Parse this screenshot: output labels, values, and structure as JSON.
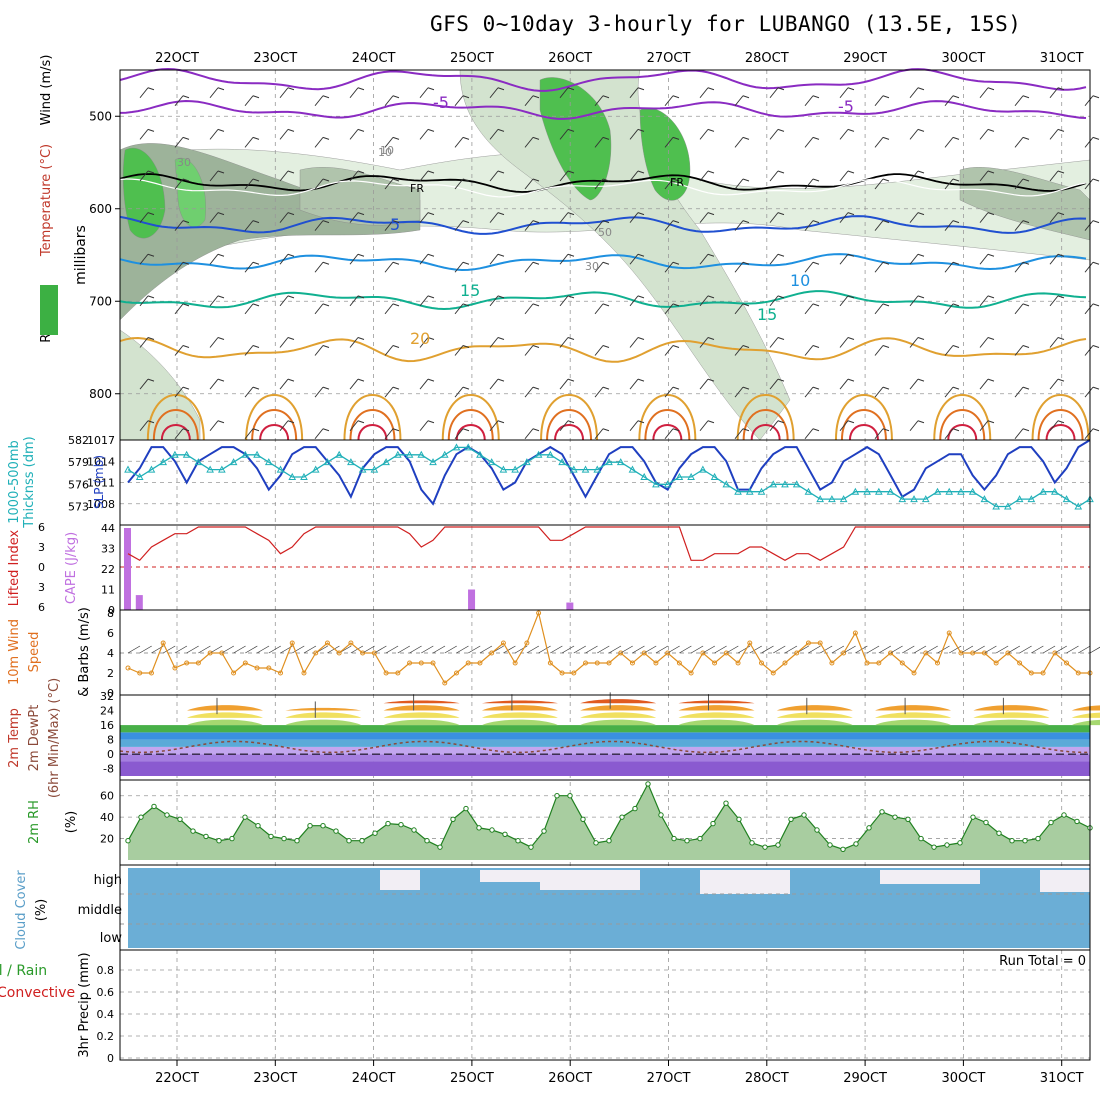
{
  "title": "GFS 0~10day 3-hourly for LUBANGO (13.5E, 15S)",
  "dates": [
    "22OCT",
    "23OCT",
    "24OCT",
    "25OCT",
    "26OCT",
    "27OCT",
    "28OCT",
    "29OCT",
    "30OCT",
    "31OCT"
  ],
  "chart_data": [
    {
      "type": "contour",
      "name": "upper-air",
      "ylabel": "millibars",
      "left_labels": [
        "RH (%)",
        "Temperature (°C)",
        "Wind (m/s)"
      ],
      "pressure_ticks": [
        500,
        600,
        700,
        800
      ],
      "ylim": [
        450,
        850
      ],
      "temp_contour_labels": [
        "-5",
        "-5",
        "10",
        "FR",
        "FR",
        "5",
        "10",
        "15",
        "15",
        "20"
      ],
      "rh_contour_labels": [
        "30",
        "10",
        "50",
        "30"
      ]
    },
    {
      "type": "line",
      "name": "thickness-slp",
      "left_labels": [
        "1000-500mb",
        "Thicknss (dm)",
        "SLP (mb)"
      ],
      "thickness_ticks": [
        573,
        576,
        579,
        582
      ],
      "slp_ticks": [
        1008,
        1011,
        1014,
        1017
      ],
      "series": [
        {
          "name": "SLP",
          "values": [
            1011,
            1013,
            1016,
            1016,
            1014,
            1011,
            1014,
            1015,
            1016,
            1016,
            1015,
            1013,
            1010,
            1012,
            1015,
            1016,
            1016,
            1014,
            1012,
            1009,
            1013,
            1015,
            1016,
            1016,
            1014,
            1010,
            1008,
            1012,
            1015,
            1016,
            1015,
            1013,
            1010,
            1011,
            1014,
            1015,
            1016,
            1015,
            1012,
            1009,
            1012,
            1015,
            1016,
            1016,
            1014,
            1011,
            1010,
            1013,
            1015,
            1016,
            1016,
            1014,
            1010,
            1010,
            1013,
            1015,
            1016,
            1016,
            1013,
            1010,
            1011,
            1014,
            1015,
            1016,
            1015,
            1012,
            1009,
            1010,
            1013,
            1014,
            1015,
            1015,
            1012,
            1010,
            1012,
            1015,
            1016,
            1016,
            1014,
            1011,
            1013,
            1016,
            1017
          ]
        },
        {
          "name": "Thickness",
          "values": [
            578,
            577,
            578,
            579,
            580,
            580,
            579,
            578,
            578,
            579,
            580,
            580,
            579,
            578,
            577,
            577,
            578,
            579,
            580,
            579,
            578,
            578,
            579,
            580,
            580,
            580,
            579,
            580,
            581,
            581,
            580,
            579,
            578,
            578,
            579,
            580,
            580,
            579,
            578,
            578,
            578,
            579,
            579,
            578,
            577,
            576,
            576,
            577,
            577,
            578,
            577,
            576,
            575,
            575,
            575,
            576,
            576,
            576,
            575,
            574,
            574,
            574,
            575,
            575,
            575,
            575,
            574,
            574,
            574,
            575,
            575,
            575,
            575,
            574,
            573,
            573,
            574,
            574,
            575,
            575,
            574,
            573,
            574
          ]
        }
      ]
    },
    {
      "type": "bar+line",
      "name": "cape-li",
      "left_labels": [
        "Lifted Index",
        "CAPE (J/kg)"
      ],
      "li_ticks": [
        -6,
        -3,
        0,
        3,
        6
      ],
      "cape_ticks": [
        0,
        11,
        22,
        33,
        44
      ],
      "cape_bars": [
        {
          "day": 0.0,
          "value": 44
        },
        {
          "day": 0.12,
          "value": 8
        },
        {
          "day": 3.5,
          "value": 11
        },
        {
          "day": 4.5,
          "value": 4
        }
      ],
      "lifted_index": [
        2,
        1,
        3,
        4,
        5,
        5,
        6,
        6,
        6,
        6,
        6,
        5,
        4,
        2,
        3,
        5,
        6,
        6,
        6,
        6,
        6,
        6,
        6,
        6,
        5,
        3,
        4,
        6,
        6,
        6,
        6,
        6,
        6,
        6,
        6,
        6,
        4,
        4,
        5,
        6,
        6,
        6,
        6,
        6,
        6,
        6,
        6,
        6,
        1,
        1,
        2,
        2,
        2,
        3,
        3,
        2,
        1,
        2,
        2,
        1,
        2,
        3,
        6,
        6,
        6,
        6,
        6,
        6,
        6,
        6,
        6,
        6,
        6,
        6,
        6,
        6,
        6,
        6,
        6,
        6,
        6,
        6,
        6
      ]
    },
    {
      "type": "line",
      "name": "wind10m",
      "left_labels": [
        "10m Wind",
        "Speed",
        "& Barbs (m/s)"
      ],
      "yticks": [
        0,
        2,
        4,
        6,
        8
      ],
      "values": [
        2.5,
        2,
        2,
        5,
        2.5,
        3,
        3,
        4,
        4,
        2,
        3,
        2.5,
        2.5,
        2,
        5,
        2,
        4,
        5,
        4,
        5,
        4,
        4,
        2,
        2,
        3,
        3,
        3,
        1,
        2,
        3,
        3,
        4,
        5,
        3,
        5,
        8,
        3,
        2,
        2,
        3,
        3,
        3,
        4,
        3,
        4,
        3,
        4,
        3,
        2,
        4,
        3,
        4,
        3,
        5,
        3,
        2,
        3,
        4,
        5,
        5,
        3,
        4,
        6,
        3,
        3,
        4,
        3,
        2,
        4,
        3,
        6,
        4,
        4,
        4,
        3,
        4,
        3,
        2,
        2,
        4,
        3,
        2,
        2
      ]
    },
    {
      "type": "area",
      "name": "temp-dewpoint",
      "left_labels": [
        "2m Temp",
        "2m DewPt",
        "(6hr Min/Max) (°C)"
      ],
      "yticks": [
        -8,
        0,
        8,
        16,
        24,
        32
      ],
      "temp_max_daily": [
        28,
        26,
        30,
        30,
        31,
        30,
        28,
        28,
        28,
        28
      ],
      "temp_min_daily": [
        17,
        16,
        16,
        16,
        16,
        16,
        16,
        15,
        15,
        15
      ],
      "dewpoint_range": [
        -6,
        10
      ]
    },
    {
      "type": "area",
      "name": "rh2m",
      "left_labels": [
        "2m RH",
        "(%)"
      ],
      "yticks": [
        20,
        40,
        60
      ],
      "values": [
        18,
        40,
        50,
        42,
        38,
        27,
        22,
        18,
        20,
        40,
        32,
        22,
        20,
        18,
        32,
        32,
        27,
        18,
        18,
        25,
        34,
        33,
        28,
        18,
        12,
        38,
        48,
        30,
        28,
        24,
        18,
        12,
        27,
        60,
        60,
        38,
        16,
        18,
        40,
        48,
        71,
        42,
        20,
        18,
        20,
        34,
        53,
        38,
        16,
        12,
        14,
        38,
        42,
        28,
        14,
        10,
        15,
        30,
        45,
        40,
        38,
        20,
        12,
        14,
        16,
        40,
        35,
        25,
        18,
        18,
        20,
        35,
        42,
        36,
        30
      ]
    },
    {
      "type": "step",
      "name": "cloud-cover",
      "left_labels": [
        "Cloud Cover",
        "(%)"
      ],
      "ytick_labels": [
        "high",
        "middle",
        "low"
      ],
      "cover_all": 100
    },
    {
      "type": "bar",
      "name": "precip",
      "left_labels": [
        "Total / Rain",
        "Convective",
        "3hr Precip (mm)"
      ],
      "yticks": [
        0,
        0.2,
        0.4,
        0.6,
        0.8
      ],
      "ylim": [
        0,
        1
      ],
      "annotation": "Run Total = 0",
      "values": []
    }
  ]
}
